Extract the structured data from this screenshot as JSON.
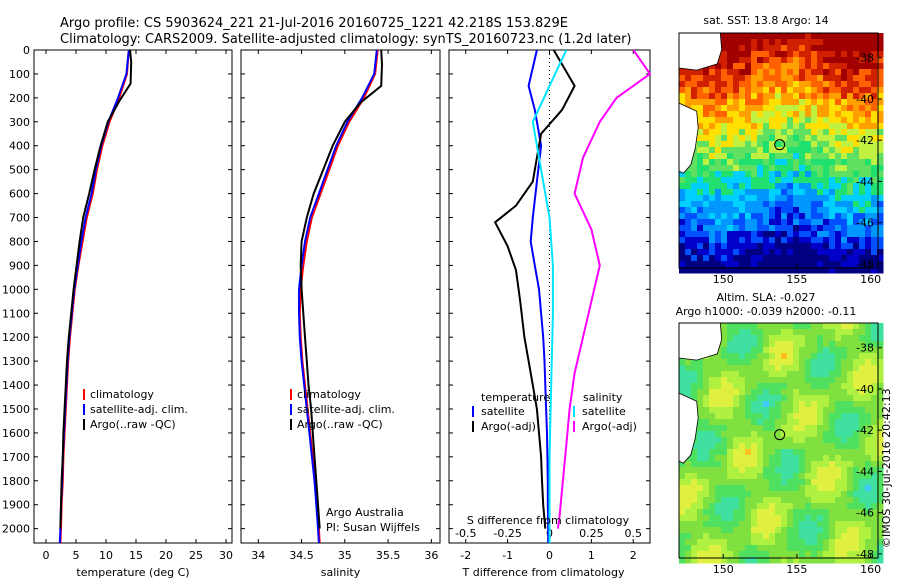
{
  "header": {
    "line1": "Argo profile: CS 5903624_221 21-Jul-2016 20160725_1221 42.218S 153.829E",
    "line2": "Climatology: CARS2009. Satellite-adjusted climatology: synTS_20160723.nc (1.2d later)"
  },
  "depth_axis": {
    "ticks": [
      0,
      100,
      200,
      300,
      400,
      500,
      600,
      700,
      800,
      900,
      1000,
      1100,
      1200,
      1300,
      1400,
      1500,
      1600,
      1700,
      1800,
      1900,
      2000
    ],
    "range": [
      0,
      2060
    ]
  },
  "colors": {
    "clim": "#ff0000",
    "sat": "#0000ff",
    "argo": "#000000",
    "sat_s": "#00e5ff",
    "argo_s": "#ff00ff"
  },
  "chart_data": [
    {
      "type": "line",
      "id": "temperature",
      "xlabel": "temperature (deg C)",
      "ylabel": "depth",
      "xlim": [
        -2,
        31
      ],
      "xticks": [
        0,
        5,
        10,
        15,
        20,
        25,
        30
      ],
      "legend": {
        "items": [
          "climatology",
          "satellite-adj. clim.",
          "Argo(..raw -QC)"
        ],
        "placement": "lower-center"
      },
      "series": [
        {
          "name": "climatology",
          "color_key": "clim",
          "points": [
            [
              13.8,
              0
            ],
            [
              13.5,
              100
            ],
            [
              12.2,
              200
            ],
            [
              10.6,
              300
            ],
            [
              9.4,
              400
            ],
            [
              8.5,
              500
            ],
            [
              7.8,
              600
            ],
            [
              6.8,
              700
            ],
            [
              6.1,
              800
            ],
            [
              5.4,
              900
            ],
            [
              4.8,
              1000
            ],
            [
              4.4,
              1100
            ],
            [
              4.0,
              1200
            ],
            [
              3.7,
              1300
            ],
            [
              3.5,
              1400
            ],
            [
              3.3,
              1500
            ],
            [
              3.1,
              1600
            ],
            [
              2.9,
              1700
            ],
            [
              2.8,
              1800
            ],
            [
              2.6,
              1900
            ],
            [
              2.5,
              2000
            ],
            [
              2.4,
              2060
            ]
          ]
        },
        {
          "name": "satellite-adj. clim.",
          "color_key": "sat",
          "points": [
            [
              13.8,
              0
            ],
            [
              13.4,
              100
            ],
            [
              12.0,
              200
            ],
            [
              10.4,
              300
            ],
            [
              9.2,
              400
            ],
            [
              8.3,
              500
            ],
            [
              7.6,
              600
            ],
            [
              6.6,
              700
            ],
            [
              5.9,
              800
            ],
            [
              5.3,
              900
            ],
            [
              4.7,
              1000
            ],
            [
              4.3,
              1100
            ],
            [
              3.9,
              1200
            ],
            [
              3.6,
              1300
            ],
            [
              3.4,
              1400
            ],
            [
              3.2,
              1500
            ],
            [
              3.0,
              1600
            ],
            [
              2.8,
              1700
            ],
            [
              2.7,
              1800
            ],
            [
              2.5,
              1900
            ],
            [
              2.4,
              2000
            ],
            [
              2.3,
              2060
            ]
          ]
        },
        {
          "name": "Argo(..raw -QC)",
          "color_key": "argo",
          "points": [
            [
              14.0,
              0
            ],
            [
              14.2,
              50
            ],
            [
              14.1,
              140
            ],
            [
              12.3,
              210
            ],
            [
              10.3,
              300
            ],
            [
              9.1,
              400
            ],
            [
              8.1,
              500
            ],
            [
              7.2,
              600
            ],
            [
              6.2,
              700
            ],
            [
              5.6,
              800
            ],
            [
              5.1,
              900
            ],
            [
              4.6,
              1000
            ],
            [
              4.2,
              1100
            ],
            [
              3.8,
              1200
            ],
            [
              3.5,
              1300
            ],
            [
              3.3,
              1400
            ],
            [
              3.1,
              1500
            ],
            [
              2.9,
              1600
            ],
            [
              2.8,
              1700
            ],
            [
              2.6,
              1800
            ],
            [
              2.5,
              1900
            ],
            [
              2.4,
              2000
            ]
          ]
        }
      ]
    },
    {
      "type": "line",
      "id": "salinity",
      "xlabel": "salinity",
      "ylabel": "depth",
      "xlim": [
        33.8,
        36.1
      ],
      "xticks": [
        34,
        34.5,
        35,
        35.5,
        36
      ],
      "xticklabels": [
        "34",
        "34.5",
        "35",
        "35.5",
        "36"
      ],
      "legend": {
        "items": [
          "climatology",
          "satellite-adj. clim.",
          "Argo(..raw -QC)"
        ],
        "placement": "lower-center"
      },
      "annotation": [
        "Argo Australia",
        "PI: Susan Wijffels"
      ],
      "series": [
        {
          "name": "climatology",
          "color_key": "clim",
          "points": [
            [
              35.38,
              0
            ],
            [
              35.35,
              100
            ],
            [
              35.22,
              200
            ],
            [
              35.05,
              300
            ],
            [
              34.92,
              400
            ],
            [
              34.82,
              500
            ],
            [
              34.72,
              600
            ],
            [
              34.62,
              700
            ],
            [
              34.56,
              800
            ],
            [
              34.52,
              900
            ],
            [
              34.49,
              1000
            ],
            [
              34.48,
              1100
            ],
            [
              34.49,
              1200
            ],
            [
              34.51,
              1300
            ],
            [
              34.54,
              1400
            ],
            [
              34.57,
              1500
            ],
            [
              34.6,
              1600
            ],
            [
              34.63,
              1700
            ],
            [
              34.66,
              1800
            ],
            [
              34.68,
              1900
            ],
            [
              34.7,
              2000
            ],
            [
              34.71,
              2060
            ]
          ]
        },
        {
          "name": "satellite-adj. clim.",
          "color_key": "sat",
          "points": [
            [
              35.37,
              0
            ],
            [
              35.34,
              100
            ],
            [
              35.2,
              200
            ],
            [
              35.03,
              300
            ],
            [
              34.9,
              400
            ],
            [
              34.8,
              500
            ],
            [
              34.7,
              600
            ],
            [
              34.6,
              700
            ],
            [
              34.54,
              800
            ],
            [
              34.5,
              900
            ],
            [
              34.47,
              1000
            ],
            [
              34.47,
              1100
            ],
            [
              34.48,
              1200
            ],
            [
              34.5,
              1300
            ],
            [
              34.53,
              1400
            ],
            [
              34.56,
              1500
            ],
            [
              34.59,
              1600
            ],
            [
              34.62,
              1700
            ],
            [
              34.65,
              1800
            ],
            [
              34.67,
              1900
            ],
            [
              34.69,
              2000
            ],
            [
              34.7,
              2060
            ]
          ]
        },
        {
          "name": "Argo(..raw -QC)",
          "color_key": "argo",
          "points": [
            [
              35.42,
              0
            ],
            [
              35.43,
              60
            ],
            [
              35.42,
              150
            ],
            [
              35.18,
              220
            ],
            [
              35.0,
              300
            ],
            [
              34.86,
              400
            ],
            [
              34.75,
              500
            ],
            [
              34.64,
              600
            ],
            [
              34.56,
              700
            ],
            [
              34.5,
              800
            ],
            [
              34.49,
              900
            ],
            [
              34.5,
              1000
            ],
            [
              34.52,
              1100
            ],
            [
              34.54,
              1200
            ],
            [
              34.56,
              1300
            ],
            [
              34.58,
              1400
            ],
            [
              34.61,
              1500
            ],
            [
              34.63,
              1600
            ],
            [
              34.65,
              1700
            ],
            [
              34.67,
              1800
            ],
            [
              34.69,
              1900
            ],
            [
              34.71,
              2000
            ]
          ]
        }
      ]
    },
    {
      "type": "line",
      "id": "difference",
      "xlabel": "T difference from climatology",
      "xlabel_top": "S difference from climatology",
      "ylabel": "depth",
      "xlim": [
        -2.4,
        2.4
      ],
      "xticks": [
        -2,
        -1,
        0,
        1,
        2
      ],
      "top_scale": {
        "ticks": [
          -0.5,
          -0.25,
          0,
          0.25,
          0.5
        ],
        "ticklabels": [
          "-0.5",
          "-0.25",
          "0",
          "0.25",
          "0.5"
        ]
      },
      "legend": {
        "temperature_title": "temperature",
        "salinity_title": "salinity",
        "items": [
          "satellite",
          "Argo(-adj)",
          "satellite",
          "Argo(-adj)"
        ],
        "placement": "lower-center"
      },
      "series": [
        {
          "name": "T satellite",
          "color_key": "sat",
          "points": [
            [
              -0.3,
              0
            ],
            [
              -0.5,
              150
            ],
            [
              -0.35,
              250
            ],
            [
              -0.2,
              400
            ],
            [
              -0.3,
              550
            ],
            [
              -0.4,
              700
            ],
            [
              -0.45,
              800
            ],
            [
              -0.35,
              900
            ],
            [
              -0.25,
              1000
            ],
            [
              -0.2,
              1100
            ],
            [
              -0.15,
              1200
            ],
            [
              -0.12,
              1300
            ],
            [
              -0.1,
              1400
            ],
            [
              -0.08,
              1500
            ],
            [
              -0.06,
              1600
            ],
            [
              -0.05,
              1700
            ],
            [
              -0.04,
              1800
            ],
            [
              -0.04,
              1900
            ],
            [
              -0.03,
              2000
            ],
            [
              -0.03,
              2060
            ]
          ]
        },
        {
          "name": "T Argo(-adj)",
          "color_key": "argo",
          "points": [
            [
              0.1,
              0
            ],
            [
              0.6,
              150
            ],
            [
              0.3,
              250
            ],
            [
              -0.2,
              350
            ],
            [
              -0.3,
              450
            ],
            [
              -0.4,
              550
            ],
            [
              -0.8,
              650
            ],
            [
              -1.3,
              720
            ],
            [
              -1.0,
              820
            ],
            [
              -0.8,
              920
            ],
            [
              -0.7,
              1050
            ],
            [
              -0.6,
              1200
            ],
            [
              -0.5,
              1300
            ],
            [
              -0.4,
              1400
            ],
            [
              -0.3,
              1500
            ],
            [
              -0.25,
              1600
            ],
            [
              -0.2,
              1700
            ],
            [
              -0.18,
              1800
            ],
            [
              -0.15,
              1900
            ],
            [
              -0.1,
              2000
            ]
          ]
        },
        {
          "name": "S satellite",
          "color_key": "sat_s",
          "points": [
            [
              0.1,
              0
            ],
            [
              0.0,
              150
            ],
            [
              -0.1,
              300
            ],
            [
              -0.05,
              500
            ],
            [
              0.0,
              700
            ],
            [
              0.02,
              900
            ],
            [
              0.02,
              1100
            ],
            [
              0.01,
              1400
            ],
            [
              0.0,
              1700
            ],
            [
              0.0,
              2060
            ]
          ]
        },
        {
          "name": "S Argo(-adj)",
          "color_key": "argo_s",
          "points": [
            [
              0.5,
              0
            ],
            [
              0.6,
              100
            ],
            [
              0.4,
              200
            ],
            [
              0.3,
              300
            ],
            [
              0.2,
              450
            ],
            [
              0.15,
              600
            ],
            [
              0.25,
              750
            ],
            [
              0.3,
              900
            ],
            [
              0.25,
              1050
            ],
            [
              0.2,
              1200
            ],
            [
              0.15,
              1350
            ],
            [
              0.12,
              1500
            ],
            [
              0.1,
              1650
            ],
            [
              0.08,
              1800
            ],
            [
              0.06,
              1950
            ],
            [
              0.05,
              2000
            ]
          ]
        }
      ]
    },
    {
      "type": "heatmap",
      "id": "sst_map",
      "title": "sat. SST: 13.8 Argo: 14",
      "xlim": [
        147,
        160.5
      ],
      "ylim": [
        -48.2,
        -36.8
      ],
      "xticks": [
        150,
        155,
        160
      ],
      "yticks": [
        -38,
        -40,
        -42,
        -44,
        -46,
        -48
      ],
      "marker": [
        153.829,
        -42.218
      ]
    },
    {
      "type": "heatmap",
      "id": "sla_map",
      "title_line1": "Altim. SLA: -0.027",
      "title_line2": "Argo h1000: -0.039 h2000: -0.11",
      "xlim": [
        147,
        160.5
      ],
      "ylim": [
        -48.2,
        -36.8
      ],
      "xticks": [
        150,
        155,
        160
      ],
      "yticks": [
        -38,
        -40,
        -42,
        -44,
        -46,
        -48
      ],
      "marker": [
        153.829,
        -42.218
      ]
    }
  ],
  "credit": "©IMOS 30-Jul-2016 20:42:13"
}
